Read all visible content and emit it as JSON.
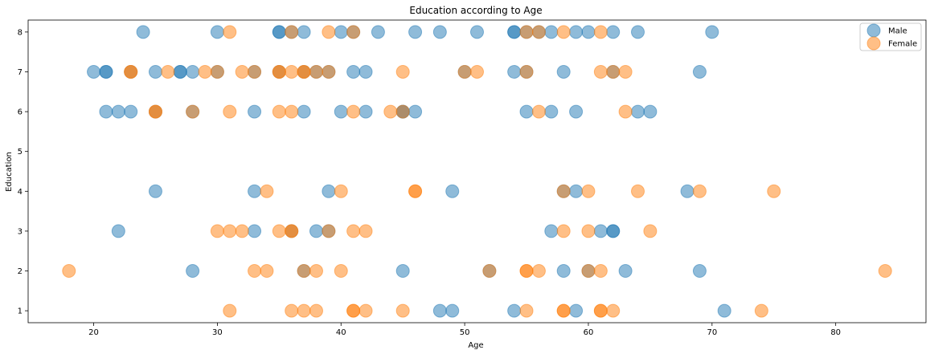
{
  "chart_data": {
    "type": "scatter",
    "title": "Education according to Age",
    "xlabel": "Age",
    "ylabel": "Education",
    "xlim": [
      14.7,
      87.3
    ],
    "ylim": [
      0.7,
      8.3
    ],
    "xticks": [
      20,
      30,
      40,
      50,
      60,
      70,
      80
    ],
    "yticks": [
      1,
      2,
      3,
      4,
      5,
      6,
      7,
      8
    ],
    "grid": false,
    "legend_position": "upper right",
    "series": [
      {
        "name": "Male",
        "color": "#1f77b4",
        "alpha": 0.5,
        "points": [
          [
            24,
            8
          ],
          [
            30,
            8
          ],
          [
            35,
            8
          ],
          [
            35,
            8
          ],
          [
            36,
            8
          ],
          [
            37,
            8
          ],
          [
            40,
            8
          ],
          [
            41,
            8
          ],
          [
            43,
            8
          ],
          [
            46,
            8
          ],
          [
            48,
            8
          ],
          [
            51,
            8
          ],
          [
            54,
            8
          ],
          [
            54,
            8
          ],
          [
            55,
            8
          ],
          [
            56,
            8
          ],
          [
            57,
            8
          ],
          [
            59,
            8
          ],
          [
            60,
            8
          ],
          [
            62,
            8
          ],
          [
            64,
            8
          ],
          [
            70,
            8
          ],
          [
            20,
            7
          ],
          [
            21,
            7
          ],
          [
            21,
            7
          ],
          [
            23,
            7
          ],
          [
            25,
            7
          ],
          [
            27,
            7
          ],
          [
            27,
            7
          ],
          [
            28,
            7
          ],
          [
            30,
            7
          ],
          [
            33,
            7
          ],
          [
            35,
            7
          ],
          [
            37,
            7
          ],
          [
            38,
            7
          ],
          [
            39,
            7
          ],
          [
            41,
            7
          ],
          [
            42,
            7
          ],
          [
            50,
            7
          ],
          [
            54,
            7
          ],
          [
            55,
            7
          ],
          [
            58,
            7
          ],
          [
            62,
            7
          ],
          [
            69,
            7
          ],
          [
            21,
            6
          ],
          [
            22,
            6
          ],
          [
            23,
            6
          ],
          [
            25,
            6
          ],
          [
            28,
            6
          ],
          [
            33,
            6
          ],
          [
            37,
            6
          ],
          [
            40,
            6
          ],
          [
            42,
            6
          ],
          [
            45,
            6
          ],
          [
            45,
            6
          ],
          [
            46,
            6
          ],
          [
            55,
            6
          ],
          [
            57,
            6
          ],
          [
            59,
            6
          ],
          [
            64,
            6
          ],
          [
            65,
            6
          ],
          [
            25,
            4
          ],
          [
            33,
            4
          ],
          [
            39,
            4
          ],
          [
            49,
            4
          ],
          [
            58,
            4
          ],
          [
            59,
            4
          ],
          [
            68,
            4
          ],
          [
            22,
            3
          ],
          [
            33,
            3
          ],
          [
            36,
            3
          ],
          [
            38,
            3
          ],
          [
            39,
            3
          ],
          [
            57,
            3
          ],
          [
            61,
            3
          ],
          [
            62,
            3
          ],
          [
            62,
            3
          ],
          [
            28,
            2
          ],
          [
            37,
            2
          ],
          [
            45,
            2
          ],
          [
            52,
            2
          ],
          [
            58,
            2
          ],
          [
            60,
            2
          ],
          [
            63,
            2
          ],
          [
            69,
            2
          ],
          [
            48,
            1
          ],
          [
            49,
            1
          ],
          [
            54,
            1
          ],
          [
            59,
            1
          ],
          [
            71,
            1
          ]
        ]
      },
      {
        "name": "Female",
        "color": "#ff7f0e",
        "alpha": 0.5,
        "points": [
          [
            31,
            8
          ],
          [
            36,
            8
          ],
          [
            39,
            8
          ],
          [
            41,
            8
          ],
          [
            55,
            8
          ],
          [
            56,
            8
          ],
          [
            58,
            8
          ],
          [
            61,
            8
          ],
          [
            23,
            7
          ],
          [
            23,
            7
          ],
          [
            26,
            7
          ],
          [
            29,
            7
          ],
          [
            30,
            7
          ],
          [
            32,
            7
          ],
          [
            33,
            7
          ],
          [
            35,
            7
          ],
          [
            35,
            7
          ],
          [
            36,
            7
          ],
          [
            37,
            7
          ],
          [
            37,
            7
          ],
          [
            38,
            7
          ],
          [
            39,
            7
          ],
          [
            45,
            7
          ],
          [
            50,
            7
          ],
          [
            51,
            7
          ],
          [
            55,
            7
          ],
          [
            61,
            7
          ],
          [
            62,
            7
          ],
          [
            63,
            7
          ],
          [
            25,
            6
          ],
          [
            25,
            6
          ],
          [
            28,
            6
          ],
          [
            31,
            6
          ],
          [
            35,
            6
          ],
          [
            36,
            6
          ],
          [
            41,
            6
          ],
          [
            44,
            6
          ],
          [
            45,
            6
          ],
          [
            56,
            6
          ],
          [
            63,
            6
          ],
          [
            34,
            4
          ],
          [
            40,
            4
          ],
          [
            46,
            4
          ],
          [
            46,
            4
          ],
          [
            58,
            4
          ],
          [
            60,
            4
          ],
          [
            64,
            4
          ],
          [
            69,
            4
          ],
          [
            75,
            4
          ],
          [
            30,
            3
          ],
          [
            31,
            3
          ],
          [
            32,
            3
          ],
          [
            35,
            3
          ],
          [
            36,
            3
          ],
          [
            36,
            3
          ],
          [
            39,
            3
          ],
          [
            41,
            3
          ],
          [
            42,
            3
          ],
          [
            58,
            3
          ],
          [
            60,
            3
          ],
          [
            65,
            3
          ],
          [
            18,
            2
          ],
          [
            33,
            2
          ],
          [
            34,
            2
          ],
          [
            37,
            2
          ],
          [
            38,
            2
          ],
          [
            40,
            2
          ],
          [
            52,
            2
          ],
          [
            55,
            2
          ],
          [
            55,
            2
          ],
          [
            56,
            2
          ],
          [
            60,
            2
          ],
          [
            61,
            2
          ],
          [
            84,
            2
          ],
          [
            31,
            1
          ],
          [
            36,
            1
          ],
          [
            37,
            1
          ],
          [
            38,
            1
          ],
          [
            41,
            1
          ],
          [
            41,
            1
          ],
          [
            42,
            1
          ],
          [
            45,
            1
          ],
          [
            55,
            1
          ],
          [
            58,
            1
          ],
          [
            58,
            1
          ],
          [
            61,
            1
          ],
          [
            61,
            1
          ],
          [
            62,
            1
          ],
          [
            74,
            1
          ]
        ]
      }
    ]
  }
}
